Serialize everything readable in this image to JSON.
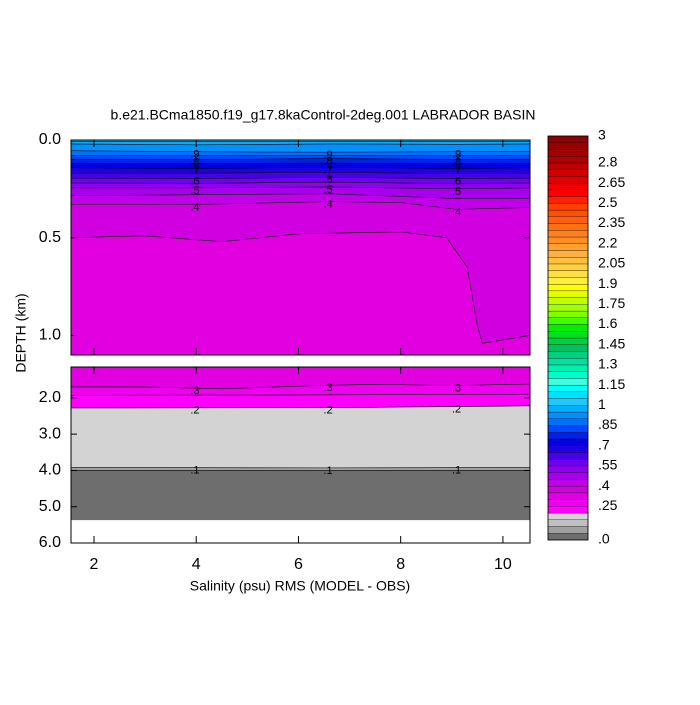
{
  "chart_data": {
    "type": "contour",
    "title": "b.e21.BCma1850.f19_g17.8kaControl-2deg.001 LABRADOR BASIN",
    "xlabel": "Salinity (psu) RMS (MODEL - OBS)",
    "ylabel": "DEPTH (km)",
    "xlim": [
      1.55,
      10.53
    ],
    "xticks": [
      2,
      4,
      6,
      8,
      10
    ],
    "line_color": "#000000",
    "missing_color": "#ffffff",
    "panels": [
      {
        "ylim": [
          0,
          1.1
        ],
        "yticks": [
          {
            "value": 0,
            "label": "0.0"
          },
          0.5,
          {
            "value": 1,
            "label": "1.0"
          }
        ],
        "contours": [
          {
            "level": 1.0,
            "points": [
              [
                1.55,
                0.008
              ],
              [
                4,
                0.008
              ],
              [
                6.6,
                0.008
              ],
              [
                9.1,
                0.008
              ],
              [
                10.53,
                0.008
              ]
            ]
          },
          {
            "level": 0.95,
            "points": [
              [
                1.55,
                0.02
              ],
              [
                4,
                0.025
              ],
              [
                6.6,
                0.02
              ],
              [
                9.1,
                0.022
              ],
              [
                10.53,
                0.02
              ]
            ]
          },
          {
            "level": 0.9,
            "label": ".9",
            "points": [
              [
                1.55,
                0.055
              ],
              [
                4,
                0.06
              ],
              [
                6.6,
                0.062
              ],
              [
                9.1,
                0.06
              ],
              [
                10.53,
                0.058
              ]
            ]
          },
          {
            "level": 0.85,
            "points": [
              [
                1.55,
                0.08
              ],
              [
                4,
                0.08
              ],
              [
                6.6,
                0.078
              ],
              [
                9.1,
                0.08
              ],
              [
                10.53,
                0.08
              ]
            ]
          },
          {
            "level": 0.8,
            "label": ".8",
            "points": [
              [
                1.55,
                0.098
              ],
              [
                4,
                0.1
              ],
              [
                6.6,
                0.095
              ],
              [
                9.1,
                0.1
              ],
              [
                10.53,
                0.098
              ]
            ]
          },
          {
            "level": 0.75,
            "points": [
              [
                1.55,
                0.12
              ],
              [
                4,
                0.12
              ],
              [
                6.6,
                0.118
              ],
              [
                9.1,
                0.122
              ],
              [
                10.53,
                0.12
              ]
            ]
          },
          {
            "level": 0.7,
            "label": ".7",
            "points": [
              [
                1.55,
                0.142
              ],
              [
                4,
                0.145
              ],
              [
                6.6,
                0.14
              ],
              [
                9.1,
                0.145
              ],
              [
                10.53,
                0.142
              ]
            ]
          },
          {
            "level": 0.65,
            "points": [
              [
                1.55,
                0.17
              ],
              [
                4,
                0.17
              ],
              [
                6.6,
                0.165
              ],
              [
                9.1,
                0.172
              ],
              [
                10.53,
                0.17
              ]
            ]
          },
          {
            "level": 0.6,
            "label": ".6",
            "points": [
              [
                1.55,
                0.195
              ],
              [
                4,
                0.198
              ],
              [
                6.6,
                0.19
              ],
              [
                9.1,
                0.198
              ],
              [
                10.53,
                0.195
              ]
            ]
          },
          {
            "level": 0.55,
            "points": [
              [
                1.55,
                0.22
              ],
              [
                4,
                0.222
              ],
              [
                6.6,
                0.215
              ],
              [
                9.1,
                0.224
              ],
              [
                10.53,
                0.22
              ]
            ]
          },
          {
            "level": 0.5,
            "label": ".5",
            "points": [
              [
                1.55,
                0.245
              ],
              [
                4,
                0.245
              ],
              [
                6.6,
                0.24
              ],
              [
                9.1,
                0.25
              ],
              [
                10.53,
                0.245
              ]
            ]
          },
          {
            "level": 0.45,
            "points": [
              [
                1.55,
                0.285
              ],
              [
                4,
                0.28
              ],
              [
                6.6,
                0.275
              ],
              [
                9.1,
                0.3
              ],
              [
                10.53,
                0.3
              ]
            ]
          },
          {
            "level": 0.4,
            "label": ".4",
            "points": [
              [
                1.55,
                0.33
              ],
              [
                4,
                0.33
              ],
              [
                6.6,
                0.315
              ],
              [
                8,
                0.32
              ],
              [
                9.1,
                0.355
              ],
              [
                10.53,
                0.345
              ]
            ]
          },
          {
            "level": 0.35,
            "points": [
              [
                1.55,
                0.5
              ],
              [
                3,
                0.49
              ],
              [
                4.5,
                0.52
              ],
              [
                6,
                0.48
              ],
              [
                8,
                0.47
              ],
              [
                8.9,
                0.5
              ],
              [
                9.3,
                0.65
              ],
              [
                9.5,
                0.95
              ],
              [
                9.6,
                1.04
              ],
              [
                10.53,
                1.0
              ]
            ]
          }
        ]
      },
      {
        "ylim": [
          1.15,
          6.0
        ],
        "yticks": [
          {
            "value": 2,
            "label": "2.0"
          },
          {
            "value": 3,
            "label": "3.0"
          },
          {
            "value": 4,
            "label": "4.0"
          },
          {
            "value": 5,
            "label": "5.0"
          },
          {
            "value": 6,
            "label": "6.0"
          }
        ],
        "missing_below": 5.37,
        "contours": [
          {
            "level": 0.3,
            "label": ".3",
            "points": [
              [
                1.55,
                1.7
              ],
              [
                3,
                1.7
              ],
              [
                4.5,
                1.75
              ],
              [
                6.6,
                1.65
              ],
              [
                7.5,
                1.63
              ],
              [
                9.1,
                1.66
              ],
              [
                10.53,
                1.62
              ]
            ]
          },
          {
            "level": 0.25,
            "points": [
              [
                1.55,
                1.93
              ],
              [
                6,
                1.92
              ],
              [
                10.53,
                1.9
              ]
            ]
          },
          {
            "level": 0.2,
            "label": ".2",
            "points": [
              [
                1.55,
                2.28
              ],
              [
                6.6,
                2.27
              ],
              [
                10.53,
                2.22
              ]
            ]
          },
          {
            "level": 0.1,
            "label": ".1",
            "points": [
              [
                1.55,
                3.92
              ],
              [
                6.6,
                3.93
              ],
              [
                10.53,
                3.92
              ]
            ]
          },
          {
            "level": 0.05,
            "points": [
              [
                1.55,
                4.0
              ],
              [
                6.6,
                4.0
              ],
              [
                10.53,
                4.0
              ]
            ]
          }
        ]
      }
    ],
    "colorbar": {
      "clim": [
        0,
        3
      ],
      "ticks": [
        {
          "value": 0,
          "label": ".0"
        },
        {
          "value": 0.25,
          "label": ".25"
        },
        {
          "value": 0.4,
          "label": ".4"
        },
        {
          "value": 0.55,
          "label": ".55"
        },
        {
          "value": 0.7,
          "label": ".7"
        },
        {
          "value": 0.85,
          "label": ".85"
        },
        1,
        1.15,
        1.3,
        1.45,
        1.6,
        1.75,
        1.9,
        2.05,
        2.2,
        2.35,
        2.5,
        2.65,
        2.8,
        3
      ],
      "colors": [
        "#6e6e6e",
        "#a0a0a0",
        "#c0c0c0",
        "#d3d3d3",
        "#ff00ff",
        "#f000f0",
        "#e000e0",
        "#d000e0",
        "#c000e8",
        "#a800ec",
        "#9000f0",
        "#7000f0",
        "#4800e8",
        "#2000e0",
        "#0000e0",
        "#0020f0",
        "#0048ff",
        "#0070ff",
        "#0090ff",
        "#00b0ff",
        "#20c8ff",
        "#00e0ff",
        "#00ffff",
        "#40ffe0",
        "#00ffc8",
        "#00f0b0",
        "#00e0a0",
        "#00d080",
        "#00c060",
        "#00d040",
        "#00e020",
        "#00f000",
        "#40ff00",
        "#80ff00",
        "#a0ff00",
        "#c0ff00",
        "#e0ff00",
        "#ffff00",
        "#fff040",
        "#ffe040",
        "#ffd040",
        "#ffc040",
        "#ffb040",
        "#ffa030",
        "#ff9020",
        "#ff8020",
        "#ff7010",
        "#ff6010",
        "#ff5000",
        "#ff4000",
        "#ff2000",
        "#ff0000",
        "#f00000",
        "#e00000",
        "#d00000",
        "#c00000",
        "#b00000",
        "#a00000",
        "#980000",
        "#900000"
      ]
    }
  }
}
